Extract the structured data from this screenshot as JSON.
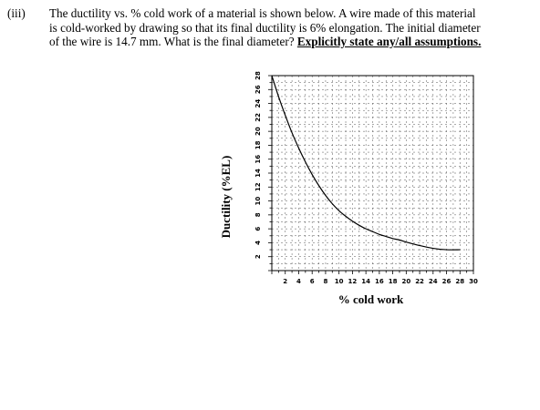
{
  "question": {
    "number": "(iii)",
    "text_lines": [
      "The ductility vs. % cold work of a material is shown below. A wire made of this material",
      "is cold-worked by drawing so that its final ductility is 6% elongation. The initial diameter",
      "of the wire is 14.7 mm. What is the final diameter?"
    ],
    "assumption_text": "Explicitly state any/all assumptions."
  },
  "chart_data": {
    "type": "line",
    "title": "",
    "xlabel": "% cold work",
    "ylabel": "Ductility (%EL)",
    "xlim": [
      0,
      30
    ],
    "ylim": [
      0,
      28
    ],
    "x_ticks": [
      "2",
      "4",
      "6",
      "8",
      "10",
      "12",
      "14",
      "16",
      "18",
      "20",
      "22",
      "24",
      "26",
      "28",
      "30"
    ],
    "y_ticks": [
      "2",
      "4",
      "6",
      "8",
      "10",
      "12",
      "14",
      "16",
      "18",
      "20",
      "22",
      "24",
      "26",
      "28"
    ],
    "grid": true,
    "series": [
      {
        "x": [
          0,
          1,
          2,
          3,
          4,
          5,
          6,
          7,
          8,
          9,
          10,
          11,
          12,
          13,
          14,
          15,
          16,
          17,
          18,
          19,
          20,
          22,
          24,
          26,
          28
        ],
        "values": [
          28,
          25,
          22.3,
          19.8,
          17.6,
          15.6,
          13.8,
          12.2,
          10.8,
          9.6,
          8.6,
          7.8,
          7.1,
          6.5,
          6.0,
          5.6,
          5.2,
          4.9,
          4.6,
          4.4,
          4.1,
          3.6,
          3.2,
          3.0,
          3.0
        ]
      }
    ]
  }
}
